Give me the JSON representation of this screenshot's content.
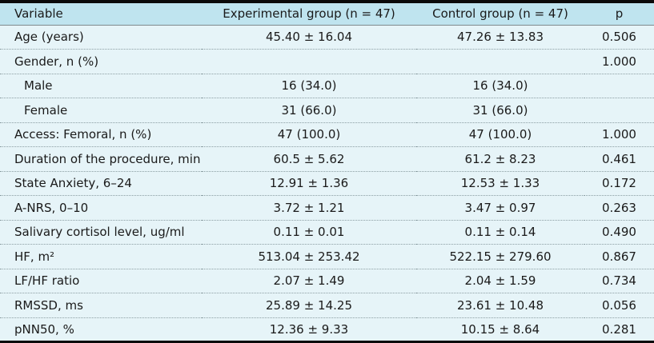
{
  "colors": {
    "header_bg": "#bfe4ef",
    "body_bg": "#e6f4f8",
    "border_heavy": "#0a0a0a",
    "rule_dotted": "#8c9ea3",
    "text": "#1a1a1a"
  },
  "table": {
    "columns": {
      "variable": "Variable",
      "experimental": "Experimental group (n = 47)",
      "control": "Control group (n = 47)",
      "p": "p"
    },
    "rows": [
      {
        "variable": "Age (years)",
        "experimental": "45.40 ± 16.04",
        "control": "47.26 ± 13.83",
        "p": "0.506"
      },
      {
        "variable": "Gender, n (%)",
        "experimental": "",
        "control": "",
        "p": "1.000"
      },
      {
        "variable": "Male",
        "experimental": "16 (34.0)",
        "control": "16 (34.0)",
        "p": ""
      },
      {
        "variable": "Female",
        "experimental": "31 (66.0)",
        "control": "31 (66.0)",
        "p": ""
      },
      {
        "variable": "Access: Femoral, n (%)",
        "experimental": "47 (100.0)",
        "control": "47 (100.0)",
        "p": "1.000"
      },
      {
        "variable": "Duration of the procedure, min",
        "experimental": "60.5 ± 5.62",
        "control": "61.2 ± 8.23",
        "p": "0.461"
      },
      {
        "variable": "State Anxiety, 6–24",
        "experimental": "12.91 ± 1.36",
        "control": "12.53 ± 1.33",
        "p": "0.172"
      },
      {
        "variable": "A-NRS, 0–10",
        "experimental": "3.72 ± 1.21",
        "control": "3.47 ± 0.97",
        "p": "0.263"
      },
      {
        "variable": "Salivary cortisol level, ug/ml",
        "experimental": "0.11 ± 0.01",
        "control": "0.11 ± 0.14",
        "p": "0.490"
      },
      {
        "variable": "HF, m²",
        "experimental": "513.04 ± 253.42",
        "control": "522.15 ± 279.60",
        "p": "0.867"
      },
      {
        "variable": "LF/HF ratio",
        "experimental": "2.07 ± 1.49",
        "control": "2.04 ± 1.59",
        "p": "0.734"
      },
      {
        "variable": "RMSSD, ms",
        "experimental": "25.89 ± 14.25",
        "control": "23.61 ± 10.48",
        "p": "0.056"
      },
      {
        "variable": "pNN50, %",
        "experimental": "12.36 ± 9.33",
        "control": "10.15 ± 8.64",
        "p": "0.281"
      }
    ]
  }
}
